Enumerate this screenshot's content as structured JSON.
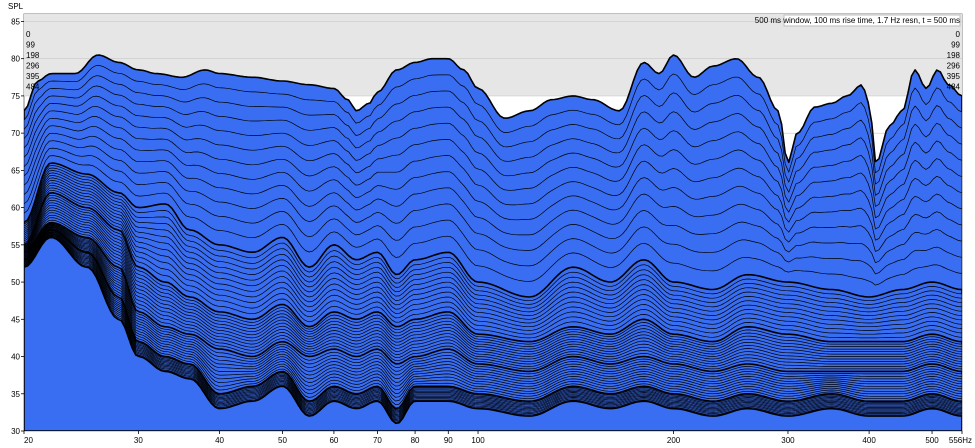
{
  "chart_data": {
    "type": "area",
    "ylabel": "SPL",
    "info": "500 ms window, 100 ms rise time,  1.7 Hz resn, t = 500 ms",
    "ylim": [
      30,
      86
    ],
    "xlim": [
      20,
      556
    ],
    "x_scale": "log",
    "y_ticks": [
      30,
      35,
      40,
      45,
      50,
      55,
      60,
      65,
      70,
      75,
      80,
      85
    ],
    "x_ticks": [
      {
        "value": 20,
        "label": "20"
      },
      {
        "value": 30,
        "label": "30"
      },
      {
        "value": 40,
        "label": "40"
      },
      {
        "value": 50,
        "label": "50"
      },
      {
        "value": 60,
        "label": "60"
      },
      {
        "value": 70,
        "label": "70"
      },
      {
        "value": 80,
        "label": "80"
      },
      {
        "value": 90,
        "label": "90"
      },
      {
        "value": 100,
        "label": "100"
      },
      {
        "value": 200,
        "label": "200"
      },
      {
        "value": 300,
        "label": "300"
      },
      {
        "value": 400,
        "label": "400"
      },
      {
        "value": 500,
        "label": "500"
      },
      {
        "value": 556,
        "label": "556Hz"
      }
    ],
    "time_labels": [
      "0",
      "99",
      "198",
      "296",
      "395",
      "484"
    ],
    "grid": true,
    "fill_color": "#3a6ef2",
    "line_color": "#000000",
    "background_color": "#ffffff",
    "plot_bg_upper": "#e6e6e6",
    "series": [
      {
        "name": "0",
        "x": [
          20,
          21,
          22,
          24,
          26,
          28,
          30,
          32,
          35,
          38,
          40,
          45,
          50,
          55,
          60,
          63,
          65,
          68,
          70,
          75,
          80,
          85,
          90,
          95,
          100,
          110,
          120,
          130,
          140,
          150,
          165,
          180,
          190,
          200,
          215,
          230,
          250,
          270,
          290,
          300,
          310,
          330,
          350,
          370,
          390,
          400,
          410,
          430,
          450,
          470,
          490,
          510,
          530,
          556
        ],
        "y": [
          73,
          77,
          78,
          78,
          80.5,
          79.5,
          78.5,
          78,
          77.5,
          78.5,
          78,
          77.5,
          77,
          76.5,
          76,
          74.5,
          73,
          74,
          75.5,
          78.5,
          79.5,
          80,
          80,
          78.5,
          76,
          72,
          73,
          74.5,
          75,
          74.5,
          73,
          79.5,
          78,
          80.5,
          77.5,
          79,
          80,
          77.5,
          73,
          66,
          70,
          73.5,
          74,
          75,
          76.5,
          74,
          66,
          71,
          73,
          78.5,
          76,
          78.5,
          76.5,
          75
        ]
      },
      {
        "name": "99",
        "x": [
          20,
          22,
          25,
          28,
          30,
          33,
          36,
          40,
          45,
          50,
          55,
          60,
          65,
          70,
          75,
          80,
          90,
          100,
          120,
          140,
          160,
          180,
          200,
          230,
          260,
          300,
          350,
          400,
          450,
          500,
          556
        ],
        "y": [
          58,
          66,
          64.5,
          62,
          60,
          60.5,
          57,
          55,
          54,
          56,
          52,
          55,
          53,
          54,
          51,
          53,
          54,
          50,
          48,
          52,
          50,
          53,
          50,
          49,
          51,
          50,
          49,
          48,
          49,
          50,
          49
        ]
      },
      {
        "name": "198",
        "x": [
          20,
          22,
          25,
          28,
          30,
          33,
          36,
          40,
          45,
          50,
          55,
          60,
          65,
          70,
          75,
          80,
          90,
          100,
          120,
          140,
          160,
          180,
          200,
          230,
          260,
          300,
          350,
          400,
          450,
          500,
          556
        ],
        "y": [
          55,
          62,
          60,
          57,
          52,
          50,
          48,
          46,
          45,
          47,
          44,
          46,
          45,
          46,
          44,
          45,
          46,
          43,
          42,
          44,
          43,
          45,
          43,
          42,
          44,
          43,
          42,
          42,
          42,
          43,
          42
        ]
      },
      {
        "name": "296",
        "x": [
          20,
          22,
          25,
          28,
          30,
          33,
          36,
          40,
          45,
          50,
          55,
          60,
          65,
          70,
          75,
          80,
          90,
          100,
          120,
          140,
          160,
          180,
          200,
          230,
          260,
          300,
          350,
          400,
          450,
          500,
          556
        ],
        "y": [
          54,
          58,
          56,
          52,
          46,
          44,
          43,
          41,
          40,
          42,
          40,
          41,
          40,
          41,
          39,
          40,
          41,
          39,
          38,
          40,
          39,
          40,
          39,
          38,
          39,
          38,
          38,
          38,
          38,
          39,
          38
        ]
      },
      {
        "name": "395",
        "x": [
          20,
          22,
          25,
          28,
          30,
          33,
          36,
          40,
          45,
          50,
          55,
          60,
          65,
          70,
          75,
          80,
          90,
          100,
          120,
          140,
          160,
          180,
          200,
          230,
          260,
          300,
          350,
          400,
          450,
          500,
          556
        ],
        "y": [
          53,
          57,
          54,
          48,
          42,
          40,
          39,
          35,
          36,
          38,
          34,
          36,
          35,
          36,
          33,
          36,
          36,
          35,
          34,
          36,
          35,
          36,
          35,
          34,
          35,
          34,
          35,
          34,
          34,
          35,
          34
        ]
      },
      {
        "name": "484",
        "x": [
          20,
          22,
          25,
          28,
          30,
          33,
          36,
          40,
          45,
          50,
          55,
          60,
          65,
          70,
          75,
          80,
          90,
          100,
          120,
          140,
          160,
          180,
          200,
          230,
          260,
          300,
          350,
          400,
          450,
          500,
          556
        ],
        "y": [
          52,
          56,
          52,
          45,
          40,
          38,
          37,
          33,
          34,
          36,
          32,
          34,
          33,
          34,
          31,
          34,
          34,
          33,
          32,
          34,
          33,
          34,
          33,
          32,
          33,
          32,
          33,
          32,
          32,
          33,
          32
        ]
      }
    ]
  }
}
